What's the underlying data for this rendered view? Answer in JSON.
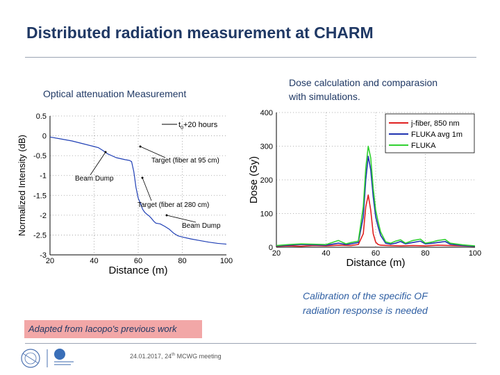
{
  "slide": {
    "title": "Distributed radiation measurement at CHARM",
    "left_caption": "Optical attenuation Measurement",
    "right_caption_line1": "Dose calculation and comparasion",
    "right_caption_line2": "with simulations.",
    "note_line1": "Calibration of the specific OF",
    "note_line2": "radiation response is needed",
    "adapted": "Adapted from Iacopo's previous work",
    "footer_date": "24.01.2017,",
    "footer_meeting": "24",
    "footer_sup": "th",
    "footer_rest": " MCWG meeting"
  },
  "chart_data": [
    {
      "type": "line",
      "xlabel": "Distance (m)",
      "ylabel": "Normalized Intensity (dB)",
      "xlim": [
        20,
        100
      ],
      "ylim": [
        -3,
        0.5
      ],
      "x_ticks": [
        20,
        40,
        60,
        80,
        100
      ],
      "y_ticks": [
        0.5,
        0,
        -0.5,
        -1,
        -1.5,
        -2,
        -2.5,
        -3
      ],
      "x_tick_labels": [
        "20",
        "40",
        "60",
        "80",
        "100"
      ],
      "y_tick_labels": [
        "0.5",
        "0",
        "-0.5",
        "-1",
        "-1.5",
        "-2",
        "-2.5",
        "-3"
      ],
      "grid": true,
      "legend_position": "top-right",
      "series": [
        {
          "name": "t0+20 hours",
          "name_main": "t",
          "name_sub": "0",
          "name_rest": "+20 hours",
          "color": "#1f3fb5",
          "x": [
            20,
            25,
            30,
            35,
            40,
            42,
            44,
            46,
            50,
            54,
            56,
            57,
            58,
            59,
            60,
            61,
            62,
            63,
            64,
            65,
            66,
            67,
            68,
            70,
            72,
            74,
            76,
            78,
            80,
            84,
            88,
            92,
            96,
            100
          ],
          "y": [
            -0.03,
            -0.08,
            -0.13,
            -0.2,
            -0.27,
            -0.3,
            -0.37,
            -0.45,
            -0.55,
            -0.6,
            -0.62,
            -0.65,
            -0.9,
            -1.3,
            -1.57,
            -1.7,
            -1.85,
            -1.93,
            -1.98,
            -2.02,
            -2.08,
            -2.15,
            -2.2,
            -2.22,
            -2.28,
            -2.35,
            -2.45,
            -2.52,
            -2.55,
            -2.6,
            -2.64,
            -2.68,
            -2.71,
            -2.73
          ]
        }
      ],
      "annotations": [
        {
          "text": "Target (fiber at 95 cm)",
          "x": 55,
          "y": -0.65
        },
        {
          "text": "Beam Dump",
          "x": 30,
          "y": -1.1
        },
        {
          "text": "Target (fiber at 280 cm)",
          "x": 58,
          "y": -1.8
        },
        {
          "text": "Beam Dump",
          "x": 73,
          "y": -2.35
        }
      ]
    },
    {
      "type": "line",
      "xlabel": "Distance (m)",
      "ylabel": "Dose (Gy)",
      "xlim": [
        20,
        100
      ],
      "ylim": [
        0,
        400
      ],
      "x_ticks": [
        20,
        40,
        60,
        80,
        100
      ],
      "y_ticks": [
        0,
        100,
        200,
        300,
        400
      ],
      "x_tick_labels": [
        "20",
        "40",
        "60",
        "80",
        "100"
      ],
      "y_tick_labels": [
        "0",
        "100",
        "200",
        "300",
        "400"
      ],
      "grid": true,
      "legend_position": "top-right",
      "series": [
        {
          "name": "j-fiber, 850 nm",
          "color": "#e02020",
          "x": [
            20,
            25,
            30,
            35,
            40,
            45,
            50,
            53,
            55,
            56,
            57,
            58,
            59,
            60,
            61,
            62,
            65,
            70,
            75,
            80,
            85,
            90,
            95,
            100
          ],
          "y": [
            3,
            4,
            3,
            5,
            4,
            6,
            5,
            8,
            40,
            120,
            155,
            110,
            40,
            15,
            8,
            6,
            5,
            4,
            5,
            4,
            6,
            5,
            4,
            3
          ]
        },
        {
          "name": "FLUKA avg 1m",
          "color": "#2033b0",
          "x": [
            20,
            25,
            30,
            35,
            40,
            45,
            48,
            50,
            53,
            55,
            56,
            57,
            58,
            59,
            60,
            61,
            62,
            64,
            66,
            68,
            70,
            72,
            75,
            78,
            80,
            83,
            85,
            88,
            90,
            95,
            100
          ],
          "y": [
            4,
            6,
            8,
            7,
            6,
            12,
            8,
            10,
            14,
            90,
            200,
            270,
            230,
            150,
            90,
            60,
            35,
            12,
            9,
            12,
            17,
            10,
            14,
            18,
            10,
            12,
            14,
            17,
            9,
            5,
            3
          ]
        },
        {
          "name": "FLUKA",
          "color": "#30d030",
          "x": [
            20,
            25,
            30,
            35,
            40,
            45,
            48,
            50,
            53,
            55,
            56,
            57,
            58,
            59,
            60,
            61,
            62,
            64,
            66,
            68,
            70,
            72,
            75,
            78,
            80,
            83,
            85,
            88,
            90,
            95,
            100
          ],
          "y": [
            5,
            8,
            10,
            9,
            8,
            20,
            10,
            14,
            18,
            120,
            235,
            300,
            265,
            175,
            110,
            75,
            45,
            16,
            12,
            18,
            22,
            12,
            20,
            24,
            12,
            16,
            20,
            23,
            12,
            7,
            4
          ]
        }
      ]
    }
  ]
}
